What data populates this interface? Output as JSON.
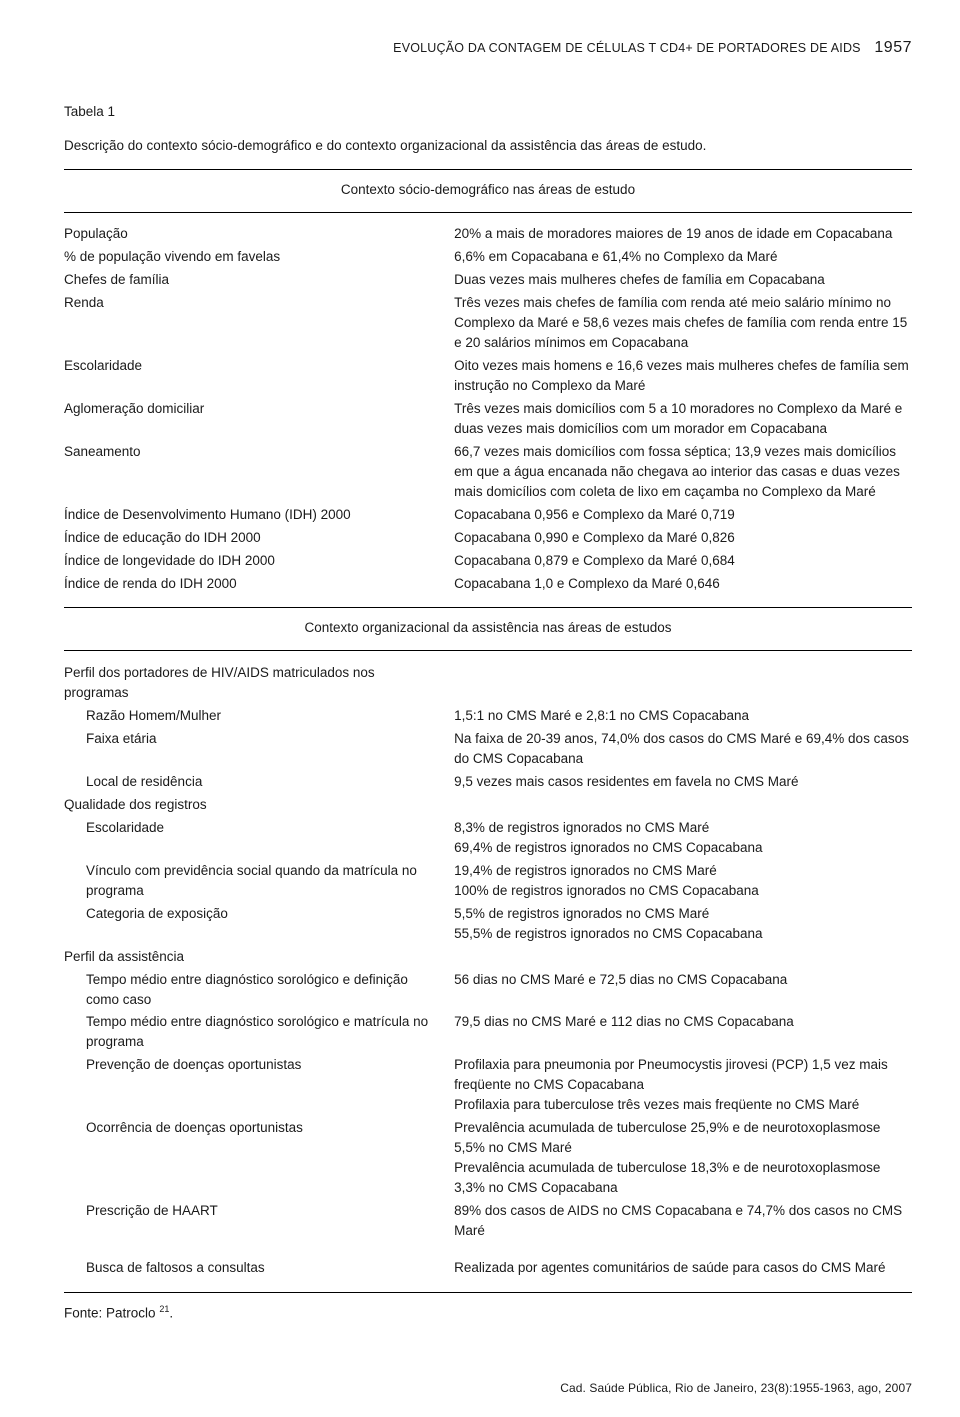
{
  "running_head": {
    "title": "EVOLUÇÃO DA CONTAGEM DE CÉLULAS T CD4+ DE PORTADORES DE AIDS",
    "page_number": "1957"
  },
  "table_label": "Tabela 1",
  "table_caption": "Descrição do contexto sócio-demográfico e do contexto organizacional da assistência das áreas de estudo.",
  "section1_head": "Contexto sócio-demográfico nas áreas de estudo",
  "section2_head": "Contexto organizacional da assistência nas áreas de estudos",
  "section1_rows": [
    {
      "label": "População",
      "value": "20% a mais de moradores maiores de 19 anos de idade em Copacabana"
    },
    {
      "label": "% de população vivendo em favelas",
      "value": "6,6% em Copacabana e 61,4% no Complexo da Maré"
    },
    {
      "label": "Chefes de família",
      "value": "Duas vezes mais mulheres chefes de família em Copacabana"
    },
    {
      "label": "Renda",
      "value": "Três vezes mais chefes de família com renda até meio salário mínimo no Complexo da Maré e 58,6 vezes mais chefes de família com renda entre 15 e 20 salários mínimos em Copacabana"
    },
    {
      "label": "Escolaridade",
      "value": "Oito vezes mais homens e 16,6 vezes mais mulheres chefes de família sem instrução no Complexo da Maré"
    },
    {
      "label": "Aglomeração domiciliar",
      "value": "Três vezes mais domicílios com 5 a 10 moradores no Complexo da Maré e duas vezes mais domicílios com um morador em Copacabana"
    },
    {
      "label": "Saneamento",
      "value": "66,7 vezes mais domicílios com fossa séptica; 13,9 vezes mais domicílios em que a água encanada não chegava ao interior das casas e duas vezes mais domicílios com coleta de lixo em caçamba no Complexo da Maré"
    },
    {
      "label": "Índice de Desenvolvimento Humano (IDH) 2000",
      "value": "Copacabana 0,956 e Complexo da Maré 0,719"
    },
    {
      "label": "Índice de educação do IDH 2000",
      "value": "Copacabana 0,990 e Complexo da Maré 0,826"
    },
    {
      "label": "Índice de longevidade do IDH 2000",
      "value": "Copacabana 0,879 e Complexo da Maré 0,684"
    },
    {
      "label": "Índice de renda do IDH 2000",
      "value": "Copacabana 1,0 e Complexo da Maré 0,646"
    }
  ],
  "section2": {
    "group1_head": "Perfil dos portadores de HIV/AIDS matriculados nos programas",
    "group1_rows": [
      {
        "label": "Razão Homem/Mulher",
        "value": "1,5:1 no CMS Maré e 2,8:1 no CMS Copacabana"
      },
      {
        "label": "Faixa etária",
        "value": "Na faixa de 20-39 anos, 74,0% dos casos do CMS Maré e 69,4% dos casos do CMS Copacabana"
      },
      {
        "label": "Local de residência",
        "value": "9,5 vezes mais casos residentes em favela no CMS Maré"
      }
    ],
    "group2_head": "Qualidade dos registros",
    "group2_rows": [
      {
        "label": "Escolaridade",
        "value": "8,3% de registros ignorados no CMS Maré\n69,4% de registros ignorados no CMS Copacabana"
      },
      {
        "label": "Vínculo com previdência social quando da matrícula no programa",
        "value": "19,4% de registros ignorados no CMS Maré\n100% de registros ignorados no CMS Copacabana"
      },
      {
        "label": "Categoria de exposição",
        "value": "5,5% de registros ignorados no CMS Maré\n55,5% de registros ignorados no CMS Copacabana"
      }
    ],
    "group3_head": "Perfil da assistência",
    "group3_rows": [
      {
        "label": "Tempo médio entre diagnóstico sorológico e definição como caso",
        "value": "56 dias no CMS Maré e 72,5 dias no CMS Copacabana"
      },
      {
        "label": "Tempo médio entre diagnóstico sorológico e matrícula no programa",
        "value": "79,5 dias no CMS Maré e 112 dias no CMS Copacabana"
      },
      {
        "label": "Prevenção de doenças oportunistas",
        "value": "Profilaxia para pneumonia por Pneumocystis jirovesi (PCP) 1,5 vez mais freqüente no CMS Copacabana\nProfilaxia para tuberculose três vezes mais freqüente no CMS Maré"
      },
      {
        "label": "Ocorrência de doenças oportunistas",
        "value": "Prevalência acumulada de tuberculose 25,9% e de neurotoxoplasmose 5,5% no CMS Maré\nPrevalência acumulada de tuberculose 18,3% e de neurotoxoplasmose 3,3% no CMS Copacabana"
      },
      {
        "label": "Prescrição de HAART",
        "value": "89% dos casos de AIDS no CMS Copacabana e 74,7% dos casos no CMS Maré"
      }
    ],
    "last_row": {
      "label": "Busca de faltosos a consultas",
      "value": "Realizada por agentes comunitários de saúde para casos do CMS Maré"
    }
  },
  "source_prefix": "Fonte: Patroclo ",
  "source_ref": "21",
  "source_suffix": ".",
  "footer": "Cad. Saúde Pública, Rio de Janeiro, 23(8):1955-1963, ago, 2007"
}
